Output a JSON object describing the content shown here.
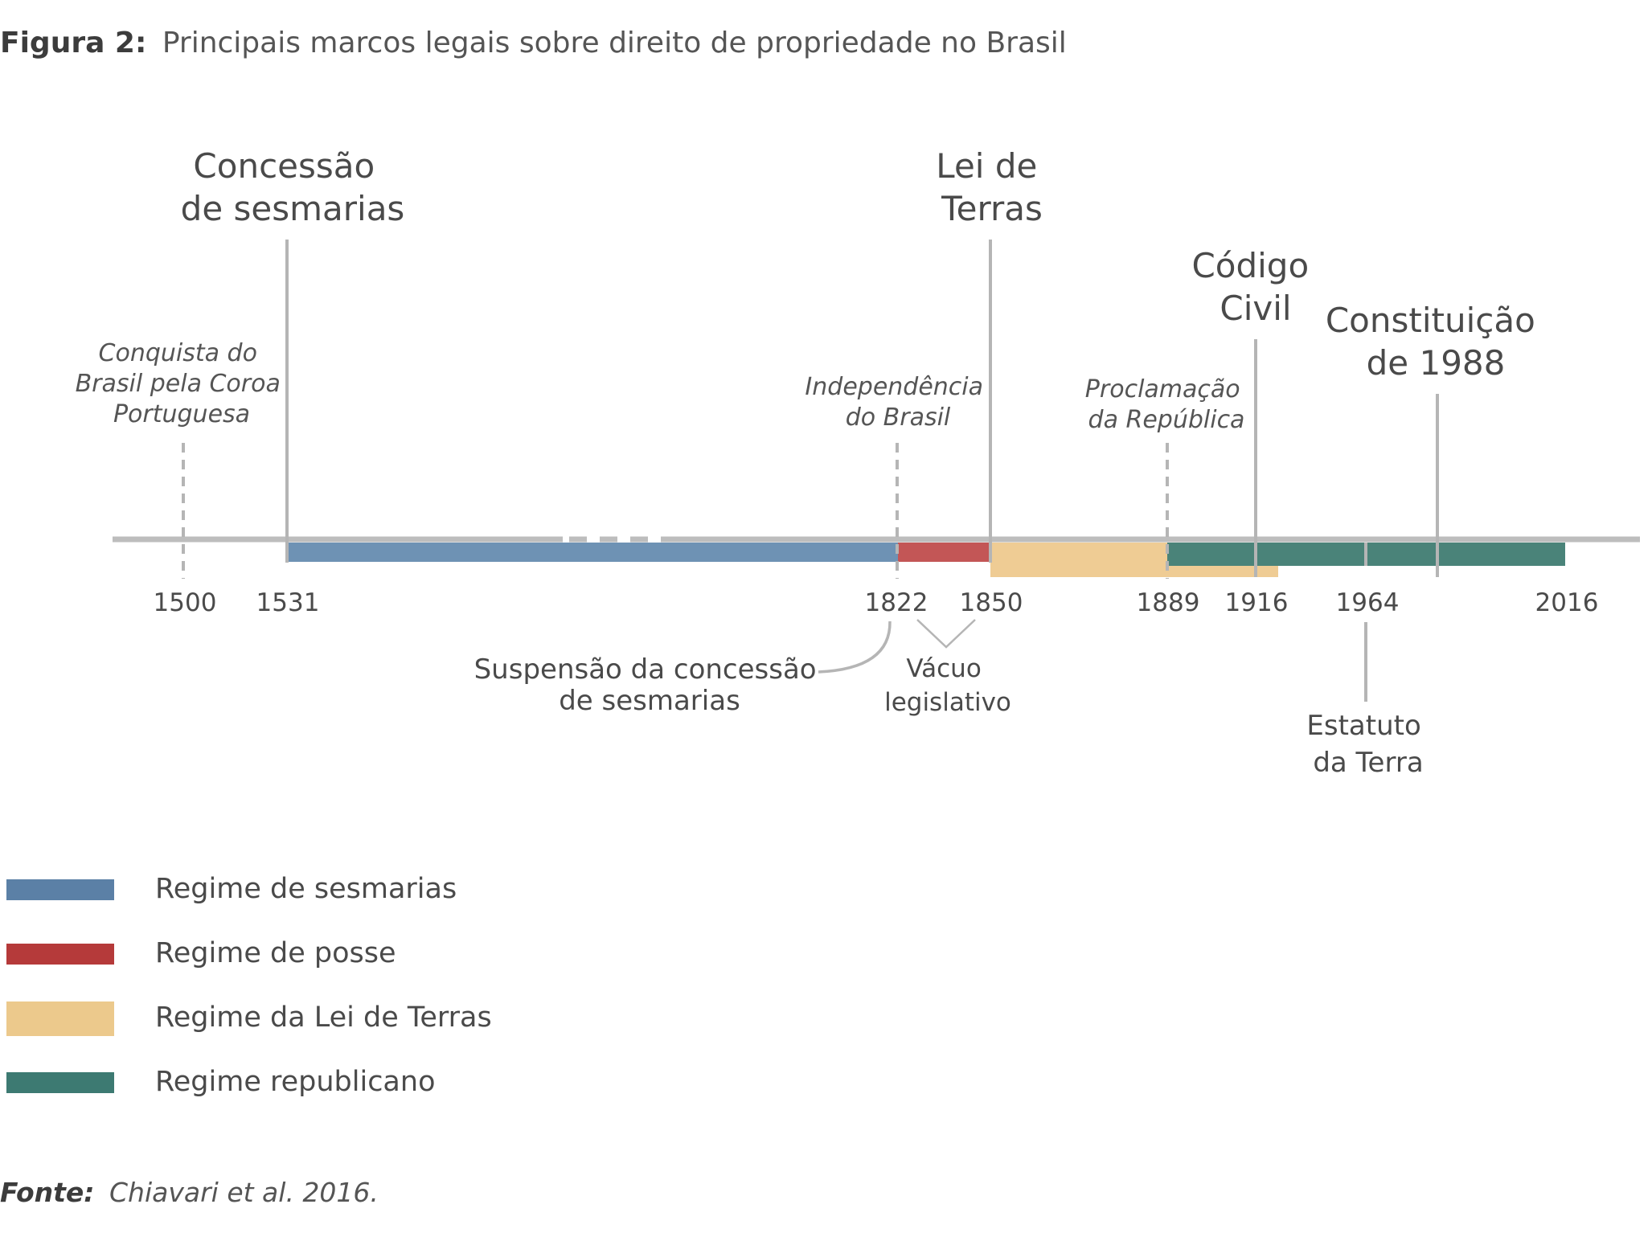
{
  "title": {
    "label": "Figura 2:",
    "text": "Principais marcos legais sobre direito de propriedade no Brasil"
  },
  "milestones": {
    "sesmarias": [
      "Concessão",
      "de sesmarias"
    ],
    "lei_terras": [
      "Lei de",
      "Terras"
    ],
    "codigo_civil": [
      "Código",
      "Civil"
    ],
    "constituicao": [
      "Constituição",
      "de 1988"
    ]
  },
  "events": {
    "conquista": [
      "Conquista do",
      "Brasil pela Coroa",
      "Portuguesa"
    ],
    "independencia": [
      "Independência",
      "do Brasil"
    ],
    "proclamacao": [
      "Proclamação",
      "da República"
    ]
  },
  "years": [
    "1500",
    "1531",
    "1822",
    "1850",
    "1889",
    "1916",
    "1964",
    "2016"
  ],
  "annotations": {
    "suspensao": [
      "Suspensão da concessão",
      "de sesmarias"
    ],
    "vacuo": [
      "Vácuo",
      "legislativo"
    ],
    "estatuto": [
      "Estatuto",
      "da Terra"
    ]
  },
  "legend": [
    {
      "label": "Regime de sesmarias",
      "color": "#5b80a6"
    },
    {
      "label": "Regime de posse",
      "color": "#b53a3a"
    },
    {
      "label": "Regime da Lei de Terras",
      "color": "#ecc98c"
    },
    {
      "label": "Regime republicano",
      "color": "#3d7a72"
    }
  ],
  "bar_colors": {
    "sesmarias": "#6e92b4",
    "posse": "#c35656",
    "lei_terras": "#efcc94",
    "republicano": "#4a8379",
    "axis": "#bdbdbd",
    "tick": "#b5b5b5"
  },
  "source": {
    "label": "Fonte:",
    "text": "Chiavari et al. 2016."
  }
}
